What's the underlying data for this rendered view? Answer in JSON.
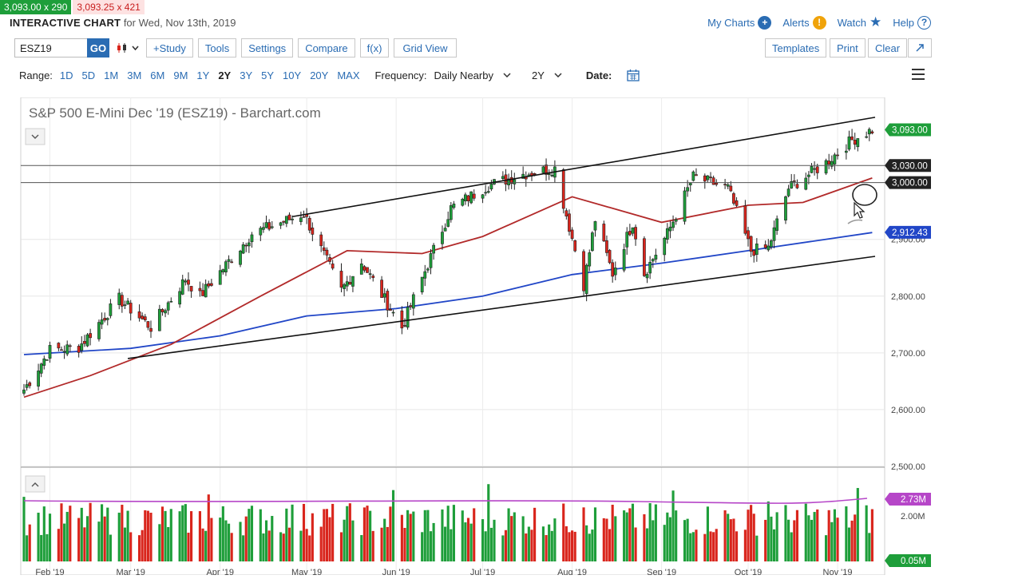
{
  "quote": {
    "bid": "3,093.00 x 290",
    "ask": "3,093.25 x 421"
  },
  "header": {
    "title": "INTERACTIVE CHART",
    "date_text": "for Wed, Nov 13th, 2019"
  },
  "links": {
    "my_charts": "My Charts",
    "alerts": "Alerts",
    "watch": "Watch",
    "help": "Help"
  },
  "toolbar": {
    "symbol": "ESZ19",
    "go": "GO",
    "study": "+Study",
    "tools": "Tools",
    "settings": "Settings",
    "compare": "Compare",
    "fx": "f(x)",
    "grid_view": "Grid View",
    "templates": "Templates",
    "print": "Print",
    "clear": "Clear"
  },
  "range": {
    "label": "Range:",
    "options": [
      "1D",
      "5D",
      "1M",
      "3M",
      "6M",
      "9M",
      "1Y",
      "2Y",
      "3Y",
      "5Y",
      "10Y",
      "20Y",
      "MAX"
    ],
    "active": "2Y",
    "frequency_label": "Frequency:",
    "frequency_value": "Daily Nearby",
    "period_value": "2Y",
    "date_label": "Date:"
  },
  "colors": {
    "up": "#1e9e3a",
    "down": "#d9251c",
    "ma50": "#b22a2a",
    "ma200": "#2146c7",
    "vol_avg": "#b646c8",
    "accent": "#2a6cb3"
  },
  "chart_data": {
    "type": "candlestick",
    "title": "S&P 500 E-Mini Dec '19 (ESZ19) - Barchart.com",
    "y_ticks": [
      2600,
      2700,
      2800,
      2900,
      3000
    ],
    "y_tick_labels": [
      "2,600.00",
      "2,700.00",
      "2,800.00",
      "2,900.00",
      "3,000.00"
    ],
    "bottom_tick_label": "2,500.00",
    "ylim": [
      2500,
      3150
    ],
    "x_labels": [
      "Feb '19",
      "Mar '19",
      "Apr '19",
      "May '19",
      "Jun '19",
      "Jul '19",
      "Aug '19",
      "Sep '19",
      "Oct '19",
      "Nov '19"
    ],
    "keypoints": [
      [
        "2019-01-23",
        2635
      ],
      [
        "2019-02-01",
        2705
      ],
      [
        "2019-02-11",
        2710
      ],
      [
        "2019-02-25",
        2795
      ],
      [
        "2019-03-08",
        2745
      ],
      [
        "2019-03-20",
        2830
      ],
      [
        "2019-03-25",
        2800
      ],
      [
        "2019-04-12",
        2910
      ],
      [
        "2019-04-30",
        2945
      ],
      [
        "2019-05-13",
        2810
      ],
      [
        "2019-05-20",
        2860
      ],
      [
        "2019-06-03",
        2745
      ],
      [
        "2019-06-20",
        2955
      ],
      [
        "2019-07-03",
        2995
      ],
      [
        "2019-07-15",
        3015
      ],
      [
        "2019-07-26",
        3025
      ],
      [
        "2019-08-05",
        2820
      ],
      [
        "2019-08-09",
        2935
      ],
      [
        "2019-08-15",
        2840
      ],
      [
        "2019-08-22",
        2930
      ],
      [
        "2019-08-26",
        2840
      ],
      [
        "2019-09-03",
        2910
      ],
      [
        "2019-09-12",
        3010
      ],
      [
        "2019-09-24",
        2990
      ],
      [
        "2019-10-02",
        2880
      ],
      [
        "2019-10-08",
        2885
      ],
      [
        "2019-10-15",
        2990
      ],
      [
        "2019-10-28",
        3035
      ],
      [
        "2019-11-06",
        3075
      ],
      [
        "2019-11-13",
        3093
      ]
    ],
    "ma50": [
      [
        "2019-01-23",
        2622
      ],
      [
        "2019-02-15",
        2660
      ],
      [
        "2019-03-15",
        2715
      ],
      [
        "2019-04-15",
        2800
      ],
      [
        "2019-05-15",
        2880
      ],
      [
        "2019-06-10",
        2875
      ],
      [
        "2019-07-01",
        2905
      ],
      [
        "2019-08-01",
        2975
      ],
      [
        "2019-09-01",
        2930
      ],
      [
        "2019-10-01",
        2960
      ],
      [
        "2019-10-20",
        2965
      ],
      [
        "2019-11-13",
        3008
      ]
    ],
    "ma200": [
      [
        "2019-01-23",
        2697
      ],
      [
        "2019-03-01",
        2708
      ],
      [
        "2019-04-01",
        2730
      ],
      [
        "2019-05-01",
        2765
      ],
      [
        "2019-06-01",
        2778
      ],
      [
        "2019-07-01",
        2800
      ],
      [
        "2019-08-01",
        2838
      ],
      [
        "2019-09-01",
        2858
      ],
      [
        "2019-10-01",
        2880
      ],
      [
        "2019-11-13",
        2912
      ]
    ],
    "trendlines": [
      {
        "from": [
          "2019-04-26",
          2940
        ],
        "to": [
          "2019-11-14",
          3115
        ]
      },
      {
        "from": [
          "2019-02-28",
          2690
        ],
        "to": [
          "2019-11-14",
          2870
        ]
      }
    ],
    "horizontal_lines": [
      3030,
      3000
    ],
    "price_labels": [
      {
        "value": 3093,
        "label": "3,093.00",
        "color": "#1e9e3a"
      },
      {
        "value": 3030,
        "label": "3,030.00",
        "color": "#222222"
      },
      {
        "value": 3000,
        "label": "3,000.00",
        "color": "#222222"
      },
      {
        "value": 2912.43,
        "label": "2,912.43",
        "color": "#2146c7"
      }
    ],
    "volume": {
      "y_tick_label": "2.00M",
      "avg_label": "2.73M",
      "last_label": "0.05M"
    }
  }
}
